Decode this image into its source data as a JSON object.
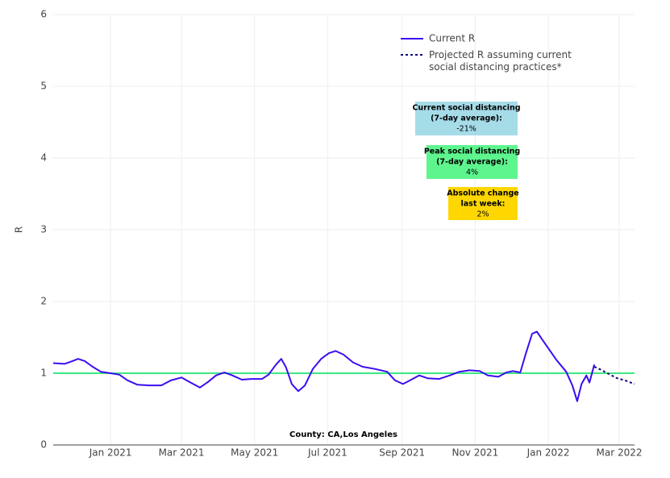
{
  "chart_data": {
    "type": "line",
    "y_label": "R",
    "xlim": [
      2020.869,
      2022.197
    ],
    "xticks": [
      {
        "value": 2021,
        "label": "Jan 2021"
      },
      {
        "value": 2021.162,
        "label": "Mar 2021"
      },
      {
        "value": 2021.329,
        "label": "May 2021"
      },
      {
        "value": 2021.496,
        "label": "Jul 2021"
      },
      {
        "value": 2021.666,
        "label": "Sep 2021"
      },
      {
        "value": 2021.833,
        "label": "Nov 2021"
      },
      {
        "value": 2022,
        "label": "Jan 2022"
      },
      {
        "value": 2022.162,
        "label": "Mar 2022"
      }
    ],
    "ylim": [
      0,
      6
    ],
    "yticks": [
      0,
      1,
      2,
      3,
      4,
      5,
      6
    ],
    "grid": true,
    "reference_line": {
      "value": 1,
      "color": "#3ee882"
    },
    "series": [
      {
        "name": "Current R",
        "color": "#3c0cf2",
        "dash": false,
        "x": [
          2020.869,
          2020.895,
          2020.913,
          2020.926,
          2020.941,
          2020.959,
          2020.978,
          2021.0,
          2021.02,
          2021.039,
          2021.061,
          2021.088,
          2021.116,
          2021.138,
          2021.162,
          2021.18,
          2021.204,
          2021.223,
          2021.241,
          2021.26,
          2021.278,
          2021.3,
          2021.322,
          2021.346,
          2021.361,
          2021.378,
          2021.39,
          2021.401,
          2021.414,
          2021.429,
          2021.444,
          2021.462,
          2021.481,
          2021.499,
          2021.514,
          2021.532,
          2021.554,
          2021.576,
          2021.604,
          2021.632,
          2021.65,
          2021.668,
          2021.687,
          2021.705,
          2021.724,
          2021.751,
          2021.775,
          2021.797,
          2021.82,
          2021.843,
          2021.862,
          2021.886,
          2021.904,
          2021.919,
          2021.936,
          2021.948,
          2021.963,
          2021.974,
          2021.985,
          2022.0,
          2022.018,
          2022.041,
          2022.055,
          2022.066,
          2022.076,
          2022.087,
          2022.094,
          2022.105
        ],
        "values": [
          1.14,
          1.13,
          1.17,
          1.2,
          1.17,
          1.09,
          1.02,
          1.0,
          0.98,
          0.9,
          0.84,
          0.83,
          0.83,
          0.9,
          0.94,
          0.88,
          0.8,
          0.88,
          0.97,
          1.01,
          0.97,
          0.91,
          0.92,
          0.92,
          0.98,
          1.12,
          1.2,
          1.08,
          0.85,
          0.75,
          0.83,
          1.06,
          1.2,
          1.28,
          1.31,
          1.26,
          1.15,
          1.09,
          1.06,
          1.02,
          0.9,
          0.85,
          0.91,
          0.97,
          0.93,
          0.92,
          0.97,
          1.02,
          1.04,
          1.03,
          0.97,
          0.95,
          1.01,
          1.03,
          1.01,
          1.26,
          1.55,
          1.58,
          1.48,
          1.35,
          1.19,
          1.02,
          0.83,
          0.61,
          0.85,
          0.97,
          0.87,
          1.12
        ]
      },
      {
        "name": "Projected R assuming current social distancing practices*",
        "color": "#0b0080",
        "dash": true,
        "x": [
          2022.105,
          2022.12,
          2022.138,
          2022.157,
          2022.175,
          2022.197
        ],
        "values": [
          1.09,
          1.05,
          0.99,
          0.93,
          0.9,
          0.85
        ]
      }
    ],
    "legend_position": "top-right",
    "annotations": [
      {
        "title": [
          "Current social distancing",
          "(7-day average):"
        ],
        "text": "-21%",
        "color": "#a6dbe8"
      },
      {
        "title": [
          "Peak social distancing",
          "(7-day average):"
        ],
        "text": "4%",
        "color": "#5ef58e"
      },
      {
        "title": [
          "Absolute change",
          "last week:"
        ],
        "text": "2%",
        "color": "#ffd700"
      }
    ],
    "footer": "County: CA,Los Angeles"
  }
}
